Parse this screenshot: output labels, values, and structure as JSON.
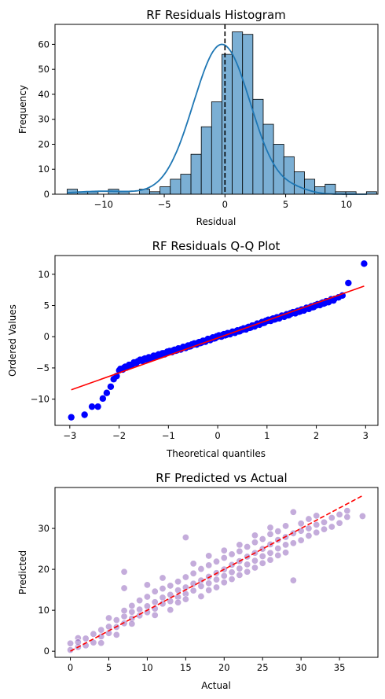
{
  "chart_data": [
    {
      "type": "bar",
      "title": "RF Residuals Histogram",
      "xlabel": "Residual",
      "ylabel": "Frequency",
      "xlim": [
        -14,
        12.6
      ],
      "ylim": [
        0,
        68
      ],
      "xticks": [
        -10,
        -5,
        0,
        5,
        10
      ],
      "yticks": [
        0,
        10,
        20,
        30,
        40,
        50,
        60
      ],
      "bin_width": 0.85,
      "bin_start": -13.0,
      "counts": [
        2,
        1,
        1,
        0,
        2,
        1,
        0,
        2,
        1,
        3,
        6,
        8,
        16,
        27,
        37,
        56,
        65,
        64,
        38,
        28,
        20,
        15,
        9,
        6,
        3,
        4,
        1,
        1,
        0,
        1
      ],
      "bar_color": "#7bafd4",
      "kde_color": "#1f77b4",
      "kde": {
        "mean": -0.25,
        "sd": 2.35,
        "peak": 60
      },
      "vline": {
        "x": 0,
        "style": "dashed",
        "color": "#000000"
      }
    },
    {
      "type": "scatter",
      "title": "RF Residuals Q-Q Plot",
      "xlabel": "Theoretical quantiles",
      "ylabel": "Ordered Values",
      "xlim": [
        -3.3,
        3.25
      ],
      "ylim": [
        -14.2,
        13
      ],
      "xticks": [
        -3,
        -2,
        -1,
        0,
        1,
        2,
        3
      ],
      "yticks": [
        -10,
        -5,
        0,
        5,
        10
      ],
      "point_color": "#0000ff",
      "line_color": "#ff0000",
      "fit_line": {
        "x": [
          -2.97,
          2.97
        ],
        "y": [
          -8.5,
          8.1
        ]
      },
      "tail_points": [
        {
          "x": -2.97,
          "y": -12.9
        },
        {
          "x": -2.7,
          "y": -12.5
        },
        {
          "x": -2.55,
          "y": -11.2
        },
        {
          "x": -2.43,
          "y": -11.2
        },
        {
          "x": -2.33,
          "y": -9.9
        },
        {
          "x": -2.25,
          "y": -9.0
        },
        {
          "x": -2.17,
          "y": -8.0
        },
        {
          "x": -2.11,
          "y": -6.8
        },
        {
          "x": -2.05,
          "y": -6.3
        },
        {
          "x": 2.45,
          "y": 6.3
        },
        {
          "x": 2.53,
          "y": 6.6
        },
        {
          "x": 2.65,
          "y": 8.6
        },
        {
          "x": 2.97,
          "y": 11.7
        }
      ],
      "body": [
        [
          -2.0,
          -5.4
        ],
        [
          -1.6,
          -3.9
        ],
        [
          -1.0,
          -2.5
        ],
        [
          -0.5,
          -1.3
        ],
        [
          0,
          0
        ],
        [
          0.5,
          1.1
        ],
        [
          1.0,
          2.5
        ],
        [
          1.5,
          3.7
        ],
        [
          2.0,
          5.0
        ],
        [
          2.4,
          6.1
        ]
      ]
    },
    {
      "type": "scatter",
      "title": "RF Predicted vs Actual",
      "xlabel": "Actual",
      "ylabel": "Predicted",
      "xlim": [
        -2,
        40
      ],
      "ylim": [
        -1.5,
        40
      ],
      "xticks": [
        0,
        5,
        10,
        15,
        20,
        25,
        30,
        35
      ],
      "yticks": [
        0,
        10,
        20,
        30
      ],
      "point_color": "#9467bd",
      "line_color": "#ff0000",
      "diagonal": {
        "x": [
          0,
          38
        ],
        "y": [
          0,
          38
        ]
      },
      "points": [
        {
          "x": 0,
          "y": 0.3
        },
        {
          "x": 0,
          "y": 1.9
        },
        {
          "x": 1,
          "y": 3.2
        },
        {
          "x": 1,
          "y": 1.0
        },
        {
          "x": 1,
          "y": 2.2
        },
        {
          "x": 2,
          "y": 3.1
        },
        {
          "x": 2,
          "y": 1.4
        },
        {
          "x": 3,
          "y": 4.2
        },
        {
          "x": 3,
          "y": 2.1
        },
        {
          "x": 4,
          "y": 3.6
        },
        {
          "x": 4,
          "y": 5.2
        },
        {
          "x": 4,
          "y": 2.0
        },
        {
          "x": 5,
          "y": 6.0
        },
        {
          "x": 5,
          "y": 4.4
        },
        {
          "x": 5,
          "y": 8.1
        },
        {
          "x": 6,
          "y": 5.9
        },
        {
          "x": 6,
          "y": 7.6
        },
        {
          "x": 6,
          "y": 4.0
        },
        {
          "x": 7,
          "y": 8.5
        },
        {
          "x": 7,
          "y": 6.8
        },
        {
          "x": 7,
          "y": 15.4
        },
        {
          "x": 7,
          "y": 19.4
        },
        {
          "x": 7,
          "y": 9.9
        },
        {
          "x": 8,
          "y": 8.0
        },
        {
          "x": 8,
          "y": 9.6
        },
        {
          "x": 8,
          "y": 11.1
        },
        {
          "x": 8,
          "y": 6.7
        },
        {
          "x": 9,
          "y": 10.2
        },
        {
          "x": 9,
          "y": 8.7
        },
        {
          "x": 9,
          "y": 12.4
        },
        {
          "x": 10,
          "y": 11.0
        },
        {
          "x": 10,
          "y": 9.5
        },
        {
          "x": 10,
          "y": 13.3
        },
        {
          "x": 10,
          "y": 16.2
        },
        {
          "x": 11,
          "y": 12.0
        },
        {
          "x": 11,
          "y": 10.4
        },
        {
          "x": 11,
          "y": 14.6
        },
        {
          "x": 11,
          "y": 8.8
        },
        {
          "x": 12,
          "y": 13.1
        },
        {
          "x": 12,
          "y": 11.6
        },
        {
          "x": 12,
          "y": 15.3
        },
        {
          "x": 12,
          "y": 17.9
        },
        {
          "x": 13,
          "y": 13.8
        },
        {
          "x": 13,
          "y": 12.2
        },
        {
          "x": 13,
          "y": 16.0
        },
        {
          "x": 13,
          "y": 10.1
        },
        {
          "x": 14,
          "y": 14.9
        },
        {
          "x": 14,
          "y": 13.2
        },
        {
          "x": 14,
          "y": 17.0
        },
        {
          "x": 14,
          "y": 11.9
        },
        {
          "x": 15,
          "y": 15.6
        },
        {
          "x": 15,
          "y": 14.0
        },
        {
          "x": 15,
          "y": 18.1
        },
        {
          "x": 15,
          "y": 27.8
        },
        {
          "x": 15,
          "y": 12.7
        },
        {
          "x": 16,
          "y": 16.5
        },
        {
          "x": 16,
          "y": 14.8
        },
        {
          "x": 16,
          "y": 19.0
        },
        {
          "x": 16,
          "y": 21.4
        },
        {
          "x": 17,
          "y": 17.3
        },
        {
          "x": 17,
          "y": 15.9
        },
        {
          "x": 17,
          "y": 20.1
        },
        {
          "x": 17,
          "y": 13.4
        },
        {
          "x": 18,
          "y": 18.2
        },
        {
          "x": 18,
          "y": 16.6
        },
        {
          "x": 18,
          "y": 21.0
        },
        {
          "x": 18,
          "y": 23.3
        },
        {
          "x": 18,
          "y": 14.9
        },
        {
          "x": 19,
          "y": 19.1
        },
        {
          "x": 19,
          "y": 17.5
        },
        {
          "x": 19,
          "y": 21.9
        },
        {
          "x": 19,
          "y": 15.6
        },
        {
          "x": 20,
          "y": 20.0
        },
        {
          "x": 20,
          "y": 18.4
        },
        {
          "x": 20,
          "y": 22.8
        },
        {
          "x": 20,
          "y": 24.6
        },
        {
          "x": 20,
          "y": 16.8
        },
        {
          "x": 21,
          "y": 21.1
        },
        {
          "x": 21,
          "y": 19.3
        },
        {
          "x": 21,
          "y": 23.7
        },
        {
          "x": 21,
          "y": 17.6
        },
        {
          "x": 22,
          "y": 22.0
        },
        {
          "x": 22,
          "y": 20.2
        },
        {
          "x": 22,
          "y": 24.4
        },
        {
          "x": 22,
          "y": 26.0
        },
        {
          "x": 22,
          "y": 18.6
        },
        {
          "x": 23,
          "y": 23.1
        },
        {
          "x": 23,
          "y": 21.2
        },
        {
          "x": 23,
          "y": 25.5
        },
        {
          "x": 23,
          "y": 19.4
        },
        {
          "x": 24,
          "y": 24.0
        },
        {
          "x": 24,
          "y": 22.1
        },
        {
          "x": 24,
          "y": 26.6
        },
        {
          "x": 24,
          "y": 28.3
        },
        {
          "x": 24,
          "y": 20.4
        },
        {
          "x": 25,
          "y": 25.0
        },
        {
          "x": 25,
          "y": 23.2
        },
        {
          "x": 25,
          "y": 27.4
        },
        {
          "x": 25,
          "y": 21.5
        },
        {
          "x": 26,
          "y": 26.1
        },
        {
          "x": 26,
          "y": 24.0
        },
        {
          "x": 26,
          "y": 28.6
        },
        {
          "x": 26,
          "y": 30.2
        },
        {
          "x": 26,
          "y": 22.3
        },
        {
          "x": 27,
          "y": 27.2
        },
        {
          "x": 27,
          "y": 25.1
        },
        {
          "x": 27,
          "y": 29.3
        },
        {
          "x": 27,
          "y": 23.4
        },
        {
          "x": 28,
          "y": 27.9
        },
        {
          "x": 28,
          "y": 26.0
        },
        {
          "x": 28,
          "y": 30.6
        },
        {
          "x": 28,
          "y": 24.1
        },
        {
          "x": 29,
          "y": 28.8
        },
        {
          "x": 29,
          "y": 34.0
        },
        {
          "x": 29,
          "y": 17.3
        },
        {
          "x": 29,
          "y": 26.4
        },
        {
          "x": 30,
          "y": 29.4
        },
        {
          "x": 30,
          "y": 27.1
        },
        {
          "x": 30,
          "y": 31.2
        },
        {
          "x": 31,
          "y": 30.0
        },
        {
          "x": 31,
          "y": 28.2
        },
        {
          "x": 31,
          "y": 32.3
        },
        {
          "x": 32,
          "y": 30.9
        },
        {
          "x": 32,
          "y": 29.0
        },
        {
          "x": 32,
          "y": 33.1
        },
        {
          "x": 33,
          "y": 31.5
        },
        {
          "x": 33,
          "y": 29.8
        },
        {
          "x": 34,
          "y": 32.6
        },
        {
          "x": 34,
          "y": 30.4
        },
        {
          "x": 35,
          "y": 33.4
        },
        {
          "x": 35,
          "y": 31.3
        },
        {
          "x": 36,
          "y": 32.8
        },
        {
          "x": 36,
          "y": 34.3
        },
        {
          "x": 38,
          "y": 33.0
        }
      ]
    }
  ]
}
